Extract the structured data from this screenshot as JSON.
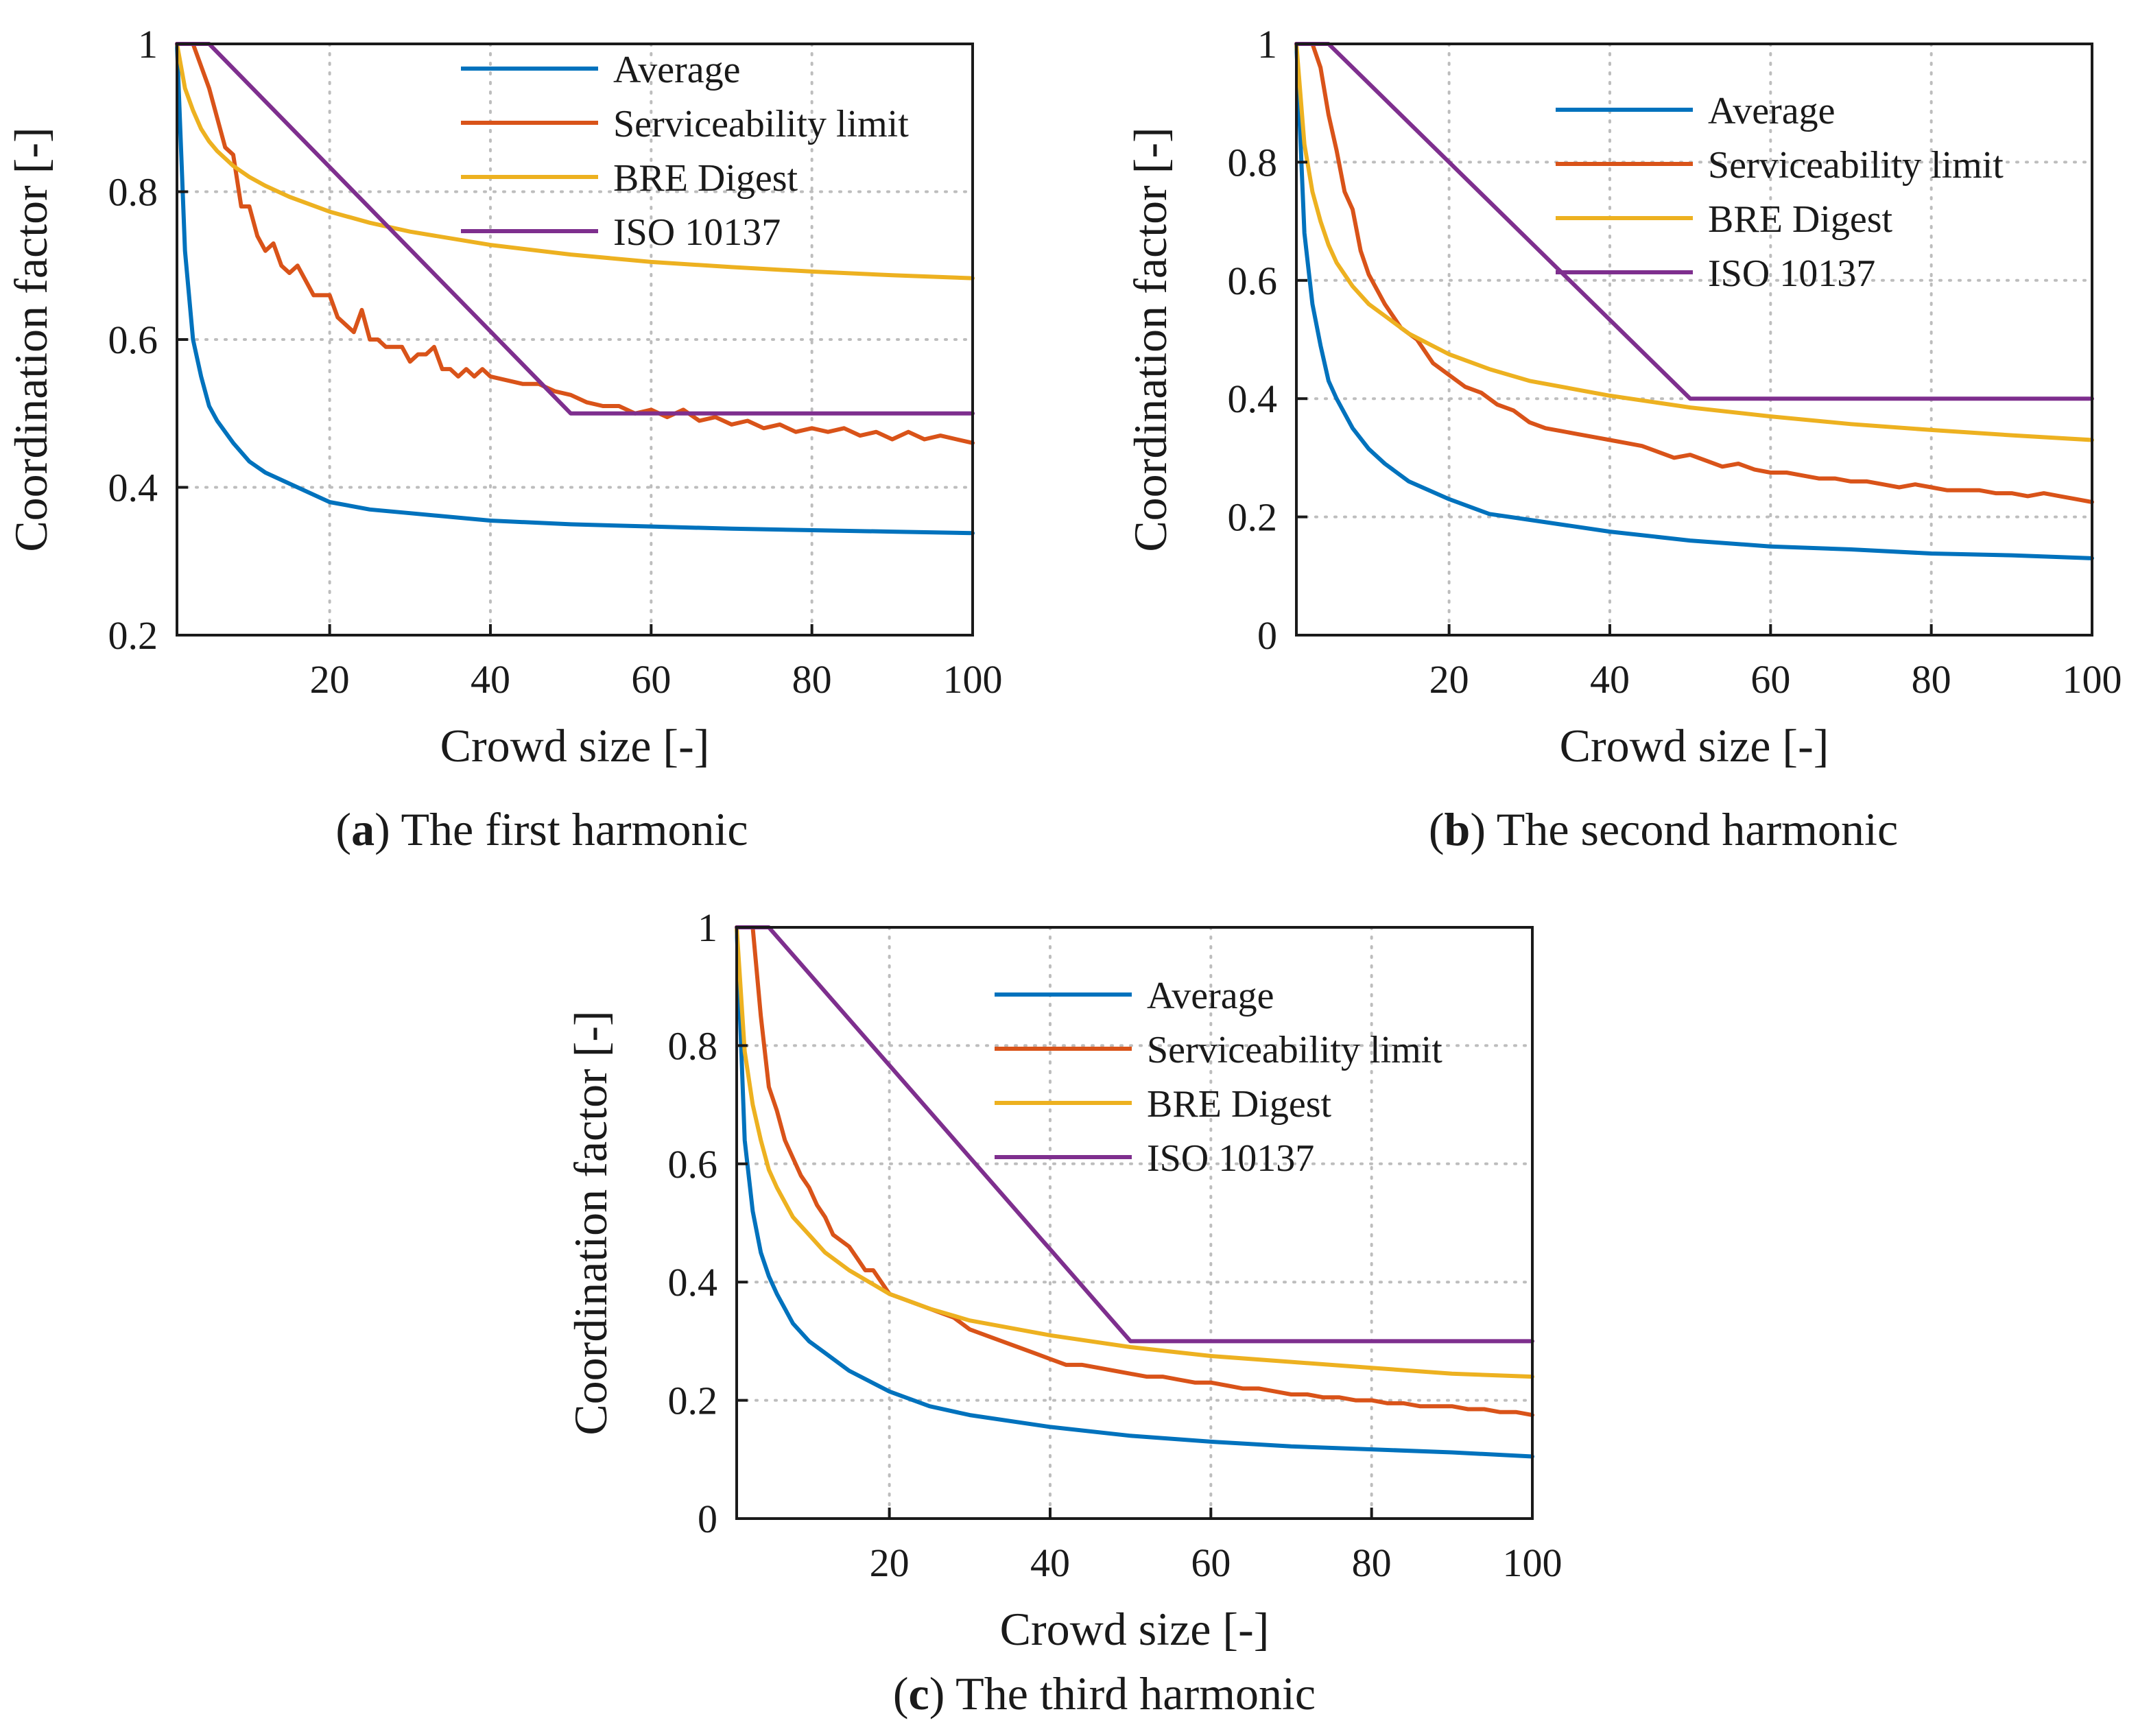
{
  "colors": {
    "average": "#0072BD",
    "serviceability": "#D95319",
    "bre": "#EDB120",
    "iso": "#7E2F8E",
    "axis": "#1a1a1a",
    "grid": "#bdbdbd"
  },
  "chart_data": [
    {
      "type": "line",
      "caption_letter": "a",
      "caption_text": " The first harmonic",
      "xlabel": "Crowd size [-]",
      "ylabel": "Coordination factor [-]",
      "xlim": [
        1,
        100
      ],
      "ylim": [
        0.2,
        1
      ],
      "xticks": [
        20,
        40,
        60,
        80,
        100
      ],
      "yticks": [
        0.2,
        0.4,
        0.6,
        0.8,
        1
      ],
      "ytick_labels": [
        "0.2",
        "0.4",
        "0.6",
        "0.8",
        "1"
      ],
      "grid": true,
      "legend_position": "top-right",
      "series": [
        {
          "name": "Average",
          "color": "#0072BD",
          "x": [
            1,
            2,
            3,
            4,
            5,
            6,
            8,
            10,
            12,
            15,
            20,
            25,
            30,
            40,
            50,
            60,
            70,
            80,
            90,
            100
          ],
          "y": [
            1,
            0.72,
            0.6,
            0.55,
            0.51,
            0.49,
            0.46,
            0.435,
            0.42,
            0.405,
            0.38,
            0.37,
            0.365,
            0.355,
            0.35,
            0.347,
            0.344,
            0.342,
            0.34,
            0.338
          ]
        },
        {
          "name": "Serviceability limit",
          "color": "#D95319",
          "x": [
            1,
            3,
            5,
            7,
            8,
            9,
            10,
            11,
            12,
            13,
            14,
            15,
            16,
            17,
            18,
            19,
            20,
            21,
            22,
            23,
            24,
            25,
            26,
            27,
            28,
            29,
            30,
            31,
            32,
            33,
            34,
            35,
            36,
            37,
            38,
            39,
            40,
            42,
            44,
            46,
            48,
            50,
            52,
            54,
            56,
            58,
            60,
            62,
            64,
            66,
            68,
            70,
            72,
            74,
            76,
            78,
            80,
            82,
            84,
            86,
            88,
            90,
            92,
            94,
            96,
            98,
            100
          ],
          "y": [
            1,
            1,
            0.94,
            0.86,
            0.85,
            0.78,
            0.78,
            0.74,
            0.72,
            0.73,
            0.7,
            0.69,
            0.7,
            0.68,
            0.66,
            0.66,
            0.66,
            0.63,
            0.62,
            0.61,
            0.64,
            0.6,
            0.6,
            0.59,
            0.59,
            0.59,
            0.57,
            0.58,
            0.58,
            0.59,
            0.56,
            0.56,
            0.55,
            0.56,
            0.55,
            0.56,
            0.55,
            0.545,
            0.54,
            0.54,
            0.53,
            0.525,
            0.515,
            0.51,
            0.51,
            0.5,
            0.505,
            0.495,
            0.505,
            0.49,
            0.495,
            0.485,
            0.49,
            0.48,
            0.485,
            0.475,
            0.48,
            0.475,
            0.48,
            0.47,
            0.475,
            0.465,
            0.475,
            0.465,
            0.47,
            0.465,
            0.46
          ]
        },
        {
          "name": "BRE Digest",
          "color": "#EDB120",
          "x": [
            1,
            2,
            3,
            4,
            5,
            6,
            8,
            10,
            12,
            15,
            20,
            25,
            30,
            40,
            50,
            60,
            70,
            80,
            90,
            100
          ],
          "y": [
            1,
            0.94,
            0.91,
            0.885,
            0.868,
            0.855,
            0.835,
            0.82,
            0.808,
            0.793,
            0.773,
            0.758,
            0.746,
            0.728,
            0.715,
            0.705,
            0.698,
            0.692,
            0.687,
            0.683
          ]
        },
        {
          "name": "ISO 10137",
          "color": "#7E2F8E",
          "x": [
            1,
            5,
            50,
            100
          ],
          "y": [
            1,
            1,
            0.5,
            0.5
          ]
        }
      ]
    },
    {
      "type": "line",
      "caption_letter": "b",
      "caption_text": " The second harmonic",
      "xlabel": "Crowd size [-]",
      "ylabel": "Coordination factor [-]",
      "xlim": [
        1,
        100
      ],
      "ylim": [
        0,
        1
      ],
      "xticks": [
        20,
        40,
        60,
        80,
        100
      ],
      "yticks": [
        0,
        0.2,
        0.4,
        0.6,
        0.8,
        1
      ],
      "ytick_labels": [
        "0",
        "0.2",
        "0.4",
        "0.6",
        "0.8",
        "1"
      ],
      "grid": true,
      "legend_position": "top-right",
      "series": [
        {
          "name": "Average",
          "color": "#0072BD",
          "x": [
            1,
            2,
            3,
            4,
            5,
            6,
            8,
            10,
            12,
            15,
            20,
            25,
            30,
            40,
            50,
            60,
            70,
            80,
            90,
            100
          ],
          "y": [
            1,
            0.68,
            0.56,
            0.49,
            0.43,
            0.4,
            0.35,
            0.315,
            0.29,
            0.26,
            0.23,
            0.205,
            0.195,
            0.175,
            0.16,
            0.15,
            0.145,
            0.138,
            0.135,
            0.13
          ]
        },
        {
          "name": "Serviceability limit",
          "color": "#D95319",
          "x": [
            1,
            3,
            4,
            5,
            6,
            7,
            8,
            9,
            10,
            12,
            14,
            16,
            18,
            20,
            22,
            24,
            26,
            28,
            30,
            32,
            34,
            36,
            38,
            40,
            42,
            44,
            46,
            48,
            50,
            52,
            54,
            56,
            58,
            60,
            62,
            64,
            66,
            68,
            70,
            72,
            74,
            76,
            78,
            80,
            82,
            84,
            86,
            88,
            90,
            92,
            94,
            96,
            98,
            100
          ],
          "y": [
            1,
            1,
            0.96,
            0.88,
            0.82,
            0.75,
            0.72,
            0.65,
            0.61,
            0.56,
            0.52,
            0.5,
            0.46,
            0.44,
            0.42,
            0.41,
            0.39,
            0.38,
            0.36,
            0.35,
            0.345,
            0.34,
            0.335,
            0.33,
            0.325,
            0.32,
            0.31,
            0.3,
            0.305,
            0.295,
            0.285,
            0.29,
            0.28,
            0.275,
            0.275,
            0.27,
            0.265,
            0.265,
            0.26,
            0.26,
            0.255,
            0.25,
            0.255,
            0.25,
            0.245,
            0.245,
            0.245,
            0.24,
            0.24,
            0.235,
            0.24,
            0.235,
            0.23,
            0.225
          ]
        },
        {
          "name": "BRE Digest",
          "color": "#EDB120",
          "x": [
            1,
            2,
            3,
            4,
            5,
            6,
            8,
            10,
            12,
            15,
            20,
            25,
            30,
            40,
            50,
            60,
            70,
            80,
            90,
            100
          ],
          "y": [
            1,
            0.83,
            0.75,
            0.7,
            0.66,
            0.63,
            0.59,
            0.56,
            0.54,
            0.51,
            0.475,
            0.45,
            0.43,
            0.405,
            0.385,
            0.37,
            0.357,
            0.347,
            0.338,
            0.33
          ]
        },
        {
          "name": "ISO 10137",
          "color": "#7E2F8E",
          "x": [
            1,
            5,
            50,
            100
          ],
          "y": [
            1,
            1,
            0.4,
            0.4
          ]
        }
      ]
    },
    {
      "type": "line",
      "caption_letter": "c",
      "caption_text": " The third harmonic",
      "xlabel": "Crowd size [-]",
      "ylabel": "Coordination factor [-]",
      "xlim": [
        1,
        100
      ],
      "ylim": [
        0,
        1
      ],
      "xticks": [
        20,
        40,
        60,
        80,
        100
      ],
      "yticks": [
        0,
        0.2,
        0.4,
        0.6,
        0.8,
        1
      ],
      "ytick_labels": [
        "0",
        "0.2",
        "0.4",
        "0.6",
        "0.8",
        "1"
      ],
      "grid": true,
      "legend_position": "top-right",
      "series": [
        {
          "name": "Average",
          "color": "#0072BD",
          "x": [
            1,
            2,
            3,
            4,
            5,
            6,
            8,
            10,
            12,
            15,
            20,
            25,
            30,
            40,
            50,
            60,
            70,
            80,
            90,
            100
          ],
          "y": [
            1,
            0.64,
            0.52,
            0.45,
            0.41,
            0.38,
            0.33,
            0.3,
            0.28,
            0.25,
            0.215,
            0.19,
            0.175,
            0.155,
            0.14,
            0.13,
            0.122,
            0.117,
            0.112,
            0.105
          ]
        },
        {
          "name": "Serviceability limit",
          "color": "#D95319",
          "x": [
            1,
            3,
            4,
            5,
            6,
            7,
            8,
            9,
            10,
            11,
            12,
            13,
            14,
            15,
            16,
            17,
            18,
            20,
            22,
            24,
            26,
            28,
            30,
            32,
            34,
            36,
            38,
            40,
            42,
            44,
            46,
            48,
            50,
            52,
            54,
            56,
            58,
            60,
            62,
            64,
            66,
            68,
            70,
            72,
            74,
            76,
            78,
            80,
            82,
            84,
            86,
            88,
            90,
            92,
            94,
            96,
            98,
            100
          ],
          "y": [
            1,
            1,
            0.85,
            0.73,
            0.69,
            0.64,
            0.61,
            0.58,
            0.56,
            0.53,
            0.51,
            0.48,
            0.47,
            0.46,
            0.44,
            0.42,
            0.42,
            0.38,
            0.37,
            0.36,
            0.35,
            0.34,
            0.32,
            0.31,
            0.3,
            0.29,
            0.28,
            0.27,
            0.26,
            0.26,
            0.255,
            0.25,
            0.245,
            0.24,
            0.24,
            0.235,
            0.23,
            0.23,
            0.225,
            0.22,
            0.22,
            0.215,
            0.21,
            0.21,
            0.205,
            0.205,
            0.2,
            0.2,
            0.195,
            0.195,
            0.19,
            0.19,
            0.19,
            0.185,
            0.185,
            0.18,
            0.18,
            0.175
          ]
        },
        {
          "name": "BRE Digest",
          "color": "#EDB120",
          "x": [
            1,
            2,
            3,
            4,
            5,
            6,
            8,
            10,
            12,
            15,
            20,
            25,
            30,
            40,
            50,
            60,
            70,
            80,
            90,
            100
          ],
          "y": [
            1,
            0.79,
            0.7,
            0.64,
            0.59,
            0.56,
            0.51,
            0.48,
            0.45,
            0.42,
            0.38,
            0.355,
            0.335,
            0.31,
            0.29,
            0.275,
            0.265,
            0.255,
            0.245,
            0.24
          ]
        },
        {
          "name": "ISO 10137",
          "color": "#7E2F8E",
          "x": [
            1,
            5,
            50,
            100
          ],
          "y": [
            1,
            1,
            0.3,
            0.3
          ]
        }
      ]
    }
  ]
}
